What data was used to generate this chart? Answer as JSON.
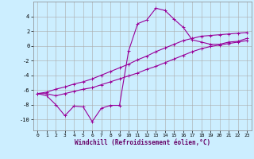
{
  "xlabel": "Windchill (Refroidissement éolien,°C)",
  "background_color": "#cceeff",
  "grid_color": "#aaaaaa",
  "line_color": "#990099",
  "x_data": [
    0,
    1,
    2,
    3,
    4,
    5,
    6,
    7,
    8,
    9,
    10,
    11,
    12,
    13,
    14,
    15,
    16,
    17,
    18,
    19,
    20,
    21,
    22,
    23
  ],
  "line1_y": [
    -6.5,
    -6.8,
    -8.0,
    -9.5,
    -8.2,
    -8.3,
    -10.3,
    -8.5,
    -8.1,
    -8.1,
    -0.7,
    3.0,
    3.5,
    5.1,
    4.8,
    3.6,
    2.5,
    0.8,
    0.5,
    0.2,
    0.2,
    0.5,
    0.6,
    1.0
  ],
  "line2_y": [
    -6.5,
    -6.3,
    -5.9,
    -5.6,
    -5.2,
    -4.9,
    -4.5,
    -4.0,
    -3.5,
    -3.0,
    -2.5,
    -1.9,
    -1.4,
    -0.8,
    -0.3,
    0.2,
    0.7,
    1.0,
    1.3,
    1.4,
    1.5,
    1.6,
    1.7,
    1.8
  ],
  "line3_y": [
    -6.5,
    -6.5,
    -6.8,
    -6.5,
    -6.2,
    -5.9,
    -5.7,
    -5.3,
    -4.9,
    -4.5,
    -4.1,
    -3.7,
    -3.2,
    -2.8,
    -2.3,
    -1.8,
    -1.3,
    -0.8,
    -0.4,
    -0.1,
    0.1,
    0.3,
    0.5,
    0.7
  ],
  "xlim": [
    -0.5,
    23.5
  ],
  "ylim": [
    -11.5,
    6.0
  ],
  "yticks": [
    -10,
    -8,
    -6,
    -4,
    -2,
    0,
    2,
    4
  ],
  "xticks": [
    0,
    1,
    2,
    3,
    4,
    5,
    6,
    7,
    8,
    9,
    10,
    11,
    12,
    13,
    14,
    15,
    16,
    17,
    18,
    19,
    20,
    21,
    22,
    23
  ]
}
